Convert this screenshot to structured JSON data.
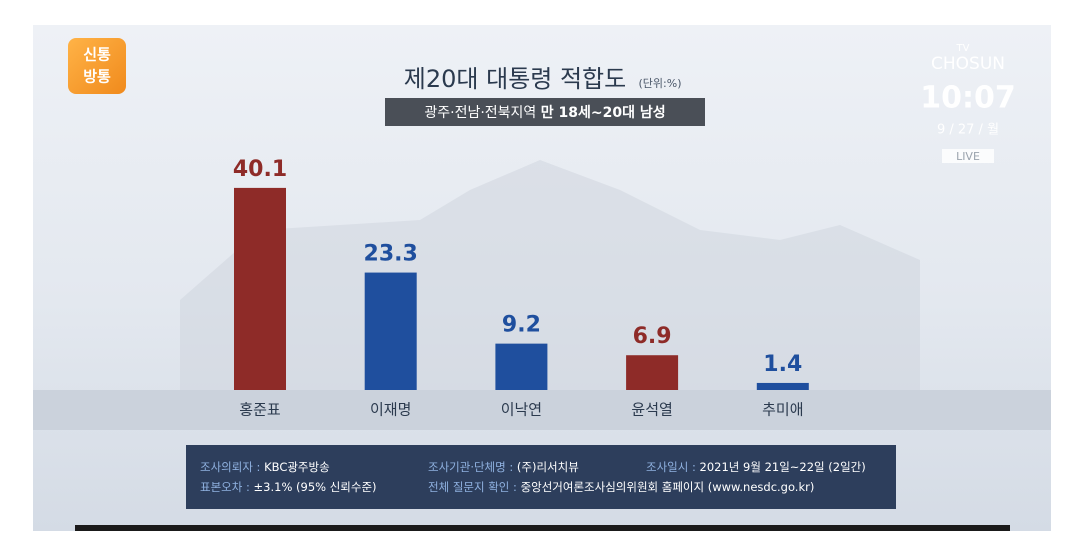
{
  "chart_data": {
    "type": "bar",
    "title": "제20대 대통령 적합도",
    "unit": "(단위:%)",
    "subtitle": "광주·전남·전북지역",
    "subtitle_emphasis": "만 18세~20대 남성",
    "categories": [
      "홍준표",
      "이재명",
      "이낙연",
      "윤석열",
      "추미애"
    ],
    "values": [
      40.1,
      23.3,
      9.2,
      6.9,
      1.4
    ],
    "colors": [
      "#8e2b28",
      "#1f4f9e",
      "#1f4f9e",
      "#8e2b28",
      "#1f4f9e"
    ]
  },
  "logo": {
    "line1": "신통",
    "line2": "방통"
  },
  "broadcast": {
    "channel_top": "TV",
    "channel": "CHOSUN",
    "time": "10:07",
    "date": "9 / 27 / 월",
    "status": "LIVE"
  },
  "footer": {
    "items": [
      {
        "label": "조사의뢰자 : ",
        "value": "KBC광주방송"
      },
      {
        "label": "조사기관·단체명 : ",
        "value": "(주)리서치뷰"
      },
      {
        "label": "조사일시 : ",
        "value": "2021년 9월 21일~22일 (2일간)"
      },
      {
        "label": "표본오차 : ",
        "value": "±3.1% (95% 신뢰수준)"
      },
      {
        "label": "전체 질문지 확인 : ",
        "value": "중앙선거여론조사심의위원회 홈페이지 (www.nesdc.go.kr)"
      }
    ]
  }
}
